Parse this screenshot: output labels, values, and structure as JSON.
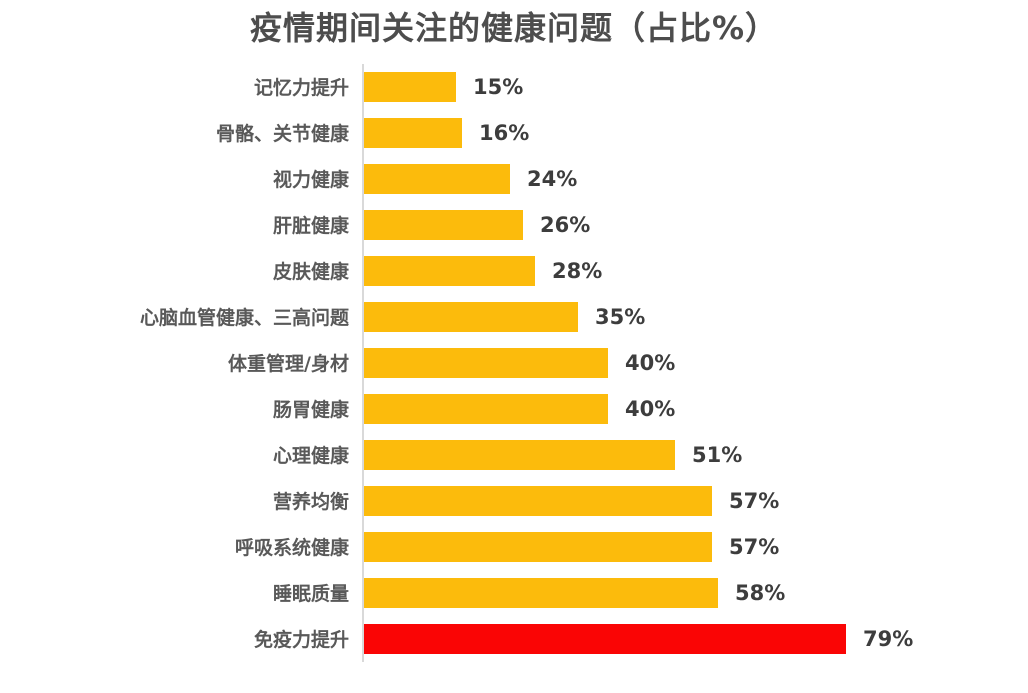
{
  "title": "疫情期间关注的健康问题（占比%）",
  "chart_data": {
    "type": "bar",
    "orientation": "horizontal",
    "title": "疫情期间关注的健康问题（占比%）",
    "categories": [
      "记忆力提升",
      "骨骼、关节健康",
      "视力健康",
      "肝脏健康",
      "皮肤健康",
      "心脑血管健康、三高问题",
      "体重管理/身材",
      "肠胃健康",
      "心理健康",
      "营养均衡",
      "呼吸系统健康",
      "睡眠质量",
      "免疫力提升"
    ],
    "values": [
      15,
      16,
      24,
      26,
      28,
      35,
      40,
      40,
      51,
      57,
      57,
      58,
      79
    ],
    "value_labels": [
      "15%",
      "16%",
      "24%",
      "26%",
      "28%",
      "35%",
      "40%",
      "40%",
      "51%",
      "57%",
      "57%",
      "58%",
      "79%"
    ],
    "xlim": [
      0,
      100
    ],
    "grid": false,
    "legend": false,
    "highlight_index": 12,
    "colors": {
      "bar_default": "#fcbb0c",
      "bar_highlight": "#fa0505",
      "axis_line": "#d9d9d9",
      "title_text": "#4d4d4d",
      "category_text": "#595959",
      "value_text": "#3d3d3d",
      "background": "#ffffff"
    }
  }
}
